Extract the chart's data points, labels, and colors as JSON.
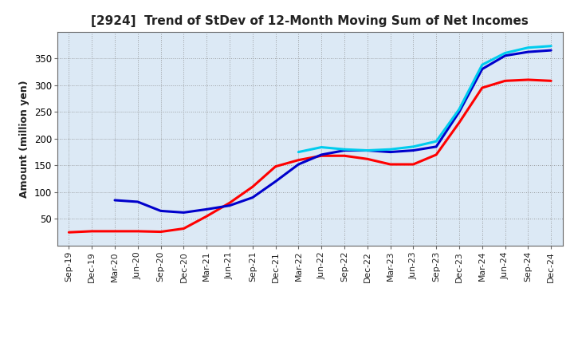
{
  "title": "[2924]  Trend of StDev of 12-Month Moving Sum of Net Incomes",
  "ylabel": "Amount (million yen)",
  "plot_bg_color": "#dce9f5",
  "fig_bg_color": "#ffffff",
  "grid_color": "#888888",
  "line_colors": {
    "3y": "#ff0000",
    "5y": "#0000cc",
    "7y": "#00ccee",
    "10y": "#007700"
  },
  "line_width": 2.2,
  "x_labels": [
    "Sep-19",
    "Dec-19",
    "Mar-20",
    "Jun-20",
    "Sep-20",
    "Dec-20",
    "Mar-21",
    "Jun-21",
    "Sep-21",
    "Dec-21",
    "Mar-22",
    "Jun-22",
    "Sep-22",
    "Dec-22",
    "Mar-23",
    "Jun-23",
    "Sep-23",
    "Dec-23",
    "Mar-24",
    "Jun-24",
    "Sep-24",
    "Dec-24"
  ],
  "ylim": [
    0,
    400
  ],
  "yticks": [
    50,
    100,
    150,
    200,
    250,
    300,
    350
  ],
  "series_3y": [
    25,
    27,
    27,
    27,
    26,
    32,
    55,
    80,
    110,
    148,
    160,
    168,
    168,
    162,
    152,
    152,
    170,
    230,
    295,
    308,
    310,
    308
  ],
  "series_5y": [
    null,
    null,
    85,
    82,
    65,
    62,
    68,
    75,
    90,
    120,
    152,
    170,
    178,
    178,
    175,
    178,
    185,
    250,
    330,
    355,
    362,
    365
  ],
  "series_7y": [
    null,
    null,
    null,
    null,
    null,
    null,
    null,
    null,
    null,
    null,
    175,
    184,
    180,
    178,
    180,
    185,
    195,
    255,
    338,
    360,
    370,
    373
  ],
  "series_10y": [
    null,
    null,
    null,
    null,
    null,
    null,
    null,
    null,
    null,
    null,
    null,
    null,
    null,
    null,
    null,
    null,
    null,
    null,
    null,
    null,
    null,
    null
  ]
}
